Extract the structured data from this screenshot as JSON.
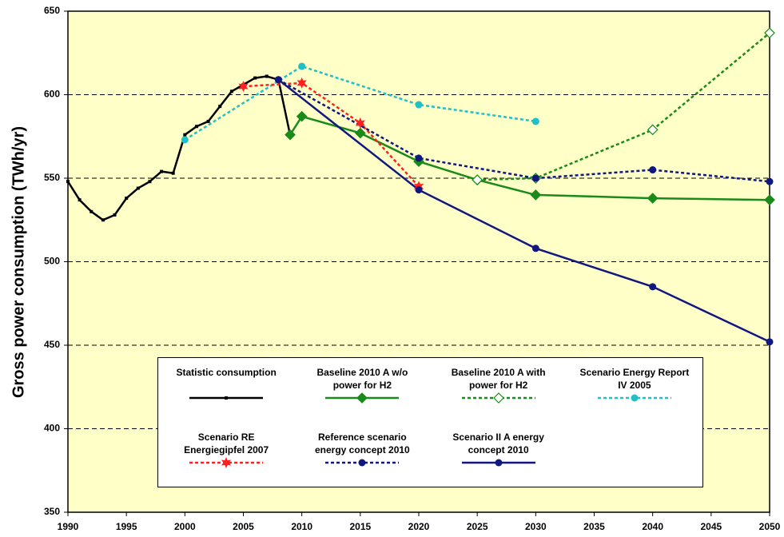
{
  "chart_data": {
    "type": "line",
    "y_label": "Gross power consumption (TWh/yr)",
    "xlim": [
      1990,
      2050
    ],
    "xticks": [
      1990,
      1995,
      2000,
      2005,
      2010,
      2015,
      2020,
      2025,
      2030,
      2035,
      2040,
      2045,
      2050
    ],
    "ylim": [
      350,
      650
    ],
    "yticks": [
      350,
      400,
      450,
      500,
      550,
      600,
      650
    ],
    "grid": true,
    "background": "#ffffc8",
    "series": [
      {
        "name": "Statistic consumption",
        "color": "#000000",
        "dash": false,
        "marker": "square",
        "x": [
          1990,
          1991,
          1992,
          1993,
          1994,
          1995,
          1996,
          1997,
          1998,
          1999,
          2000,
          2001,
          2002,
          2003,
          2004,
          2005,
          2006,
          2007,
          2008,
          2009
        ],
        "values": [
          548,
          537,
          530,
          525,
          528,
          538,
          544,
          548,
          554,
          553,
          576,
          581,
          584,
          593,
          602,
          606,
          610,
          611,
          609,
          576
        ]
      },
      {
        "name": "Baseline 2010 A w/o power for H2",
        "color": "#1a8a1a",
        "dash": false,
        "marker": "diamond",
        "x": [
          2009,
          2010,
          2015,
          2020,
          2025,
          2030,
          2040,
          2050
        ],
        "values": [
          576,
          587,
          577,
          560,
          549,
          540,
          538,
          537
        ]
      },
      {
        "name": "Baseline 2010 A with power for H2",
        "color": "#1a8a1a",
        "dash": true,
        "marker": "open-diamond",
        "x": [
          2025,
          2030,
          2040,
          2050
        ],
        "values": [
          549,
          550,
          579,
          637
        ]
      },
      {
        "name": "Scenario Energy Report IV 2005",
        "color": "#20c0c8",
        "dash": true,
        "marker": "circle",
        "x": [
          2000,
          2010,
          2020,
          2030
        ],
        "values": [
          573,
          617,
          594,
          584
        ]
      },
      {
        "name": "Scenario RE Energiegipfel 2007",
        "color": "#ff2020",
        "dash": true,
        "marker": "star",
        "x": [
          2005,
          2010,
          2015,
          2020
        ],
        "values": [
          605,
          607,
          583,
          545
        ]
      },
      {
        "name": "Reference scenario energy concept 2010",
        "color": "#101880",
        "dash": true,
        "marker": "circle",
        "x": [
          2008,
          2020,
          2030,
          2040,
          2050
        ],
        "values": [
          609,
          562,
          550,
          555,
          548
        ]
      },
      {
        "name": "Scenario II A energy concept 2010",
        "color": "#101880",
        "dash": false,
        "marker": "circle",
        "x": [
          2008,
          2020,
          2030,
          2040,
          2050
        ],
        "values": [
          609,
          543,
          508,
          485,
          452
        ]
      }
    ]
  }
}
